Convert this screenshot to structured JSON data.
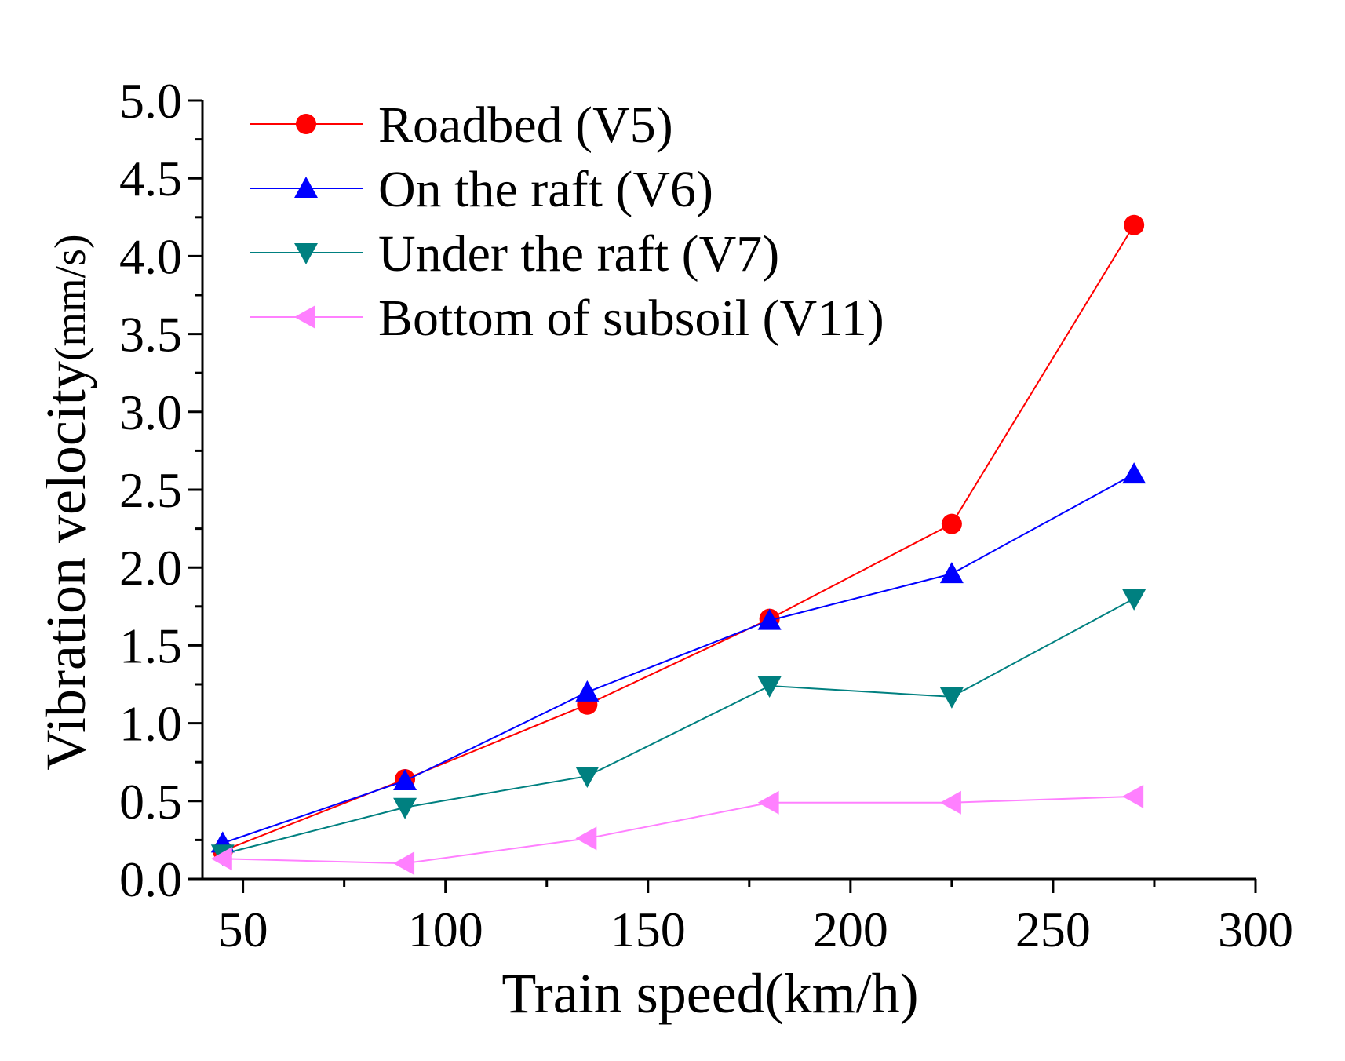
{
  "chart_data": {
    "type": "line",
    "xlabel": "Train speed(km/h)",
    "ylabel_main": "Vibration velocity",
    "ylabel_unit": "(mm/s)",
    "xlim": [
      40,
      300
    ],
    "ylim": [
      0,
      5
    ],
    "xticks": [
      50,
      100,
      150,
      200,
      250,
      300
    ],
    "xtick_labels": [
      "50",
      "100",
      "150",
      "200",
      "250",
      "300"
    ],
    "yticks": [
      0,
      0.5,
      1,
      1.5,
      2,
      2.5,
      3,
      3.5,
      4,
      4.5,
      5
    ],
    "ytick_labels": [
      "0.0",
      "0.5",
      "1.0",
      "1.5",
      "2.0",
      "2.5",
      "3.0",
      "3.5",
      "4.0",
      "4.5",
      "5.0"
    ],
    "grid": false,
    "legend_position": "top-left",
    "x": [
      45,
      90,
      135,
      180,
      225,
      270
    ],
    "series": [
      {
        "name": "Roadbed (V5)",
        "color": "#ff0000",
        "marker": "circle",
        "values": [
          0.18,
          0.64,
          1.12,
          1.67,
          2.28,
          4.2
        ]
      },
      {
        "name": "On the raft (V6)",
        "color": "#0000ff",
        "marker": "triangle-up",
        "values": [
          0.23,
          0.63,
          1.2,
          1.66,
          1.96,
          2.6
        ]
      },
      {
        "name": "Under the raft (V7)",
        "color": "#008080",
        "marker": "triangle-down",
        "values": [
          0.16,
          0.46,
          0.66,
          1.24,
          1.17,
          1.8
        ]
      },
      {
        "name": "Bottom of subsoil (V11)",
        "color": "#ff80ff",
        "marker": "triangle-left",
        "values": [
          0.13,
          0.1,
          0.26,
          0.49,
          0.49,
          0.53
        ]
      }
    ]
  }
}
